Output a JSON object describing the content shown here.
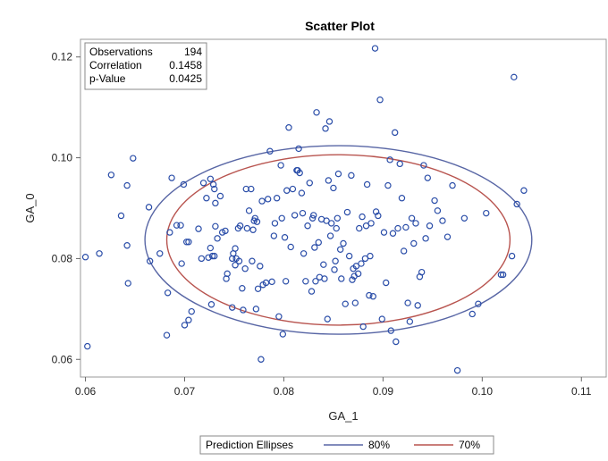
{
  "chart_data": {
    "type": "scatter",
    "title": "Scatter Plot",
    "xlabel": "GA_1",
    "ylabel": "GA_0",
    "xlim": [
      0.0595,
      0.1125
    ],
    "ylim": [
      0.0565,
      0.1235
    ],
    "xticks": [
      "0.06",
      "0.07",
      "0.08",
      "0.09",
      "0.10",
      "0.11"
    ],
    "xtick_values": [
      0.06,
      0.07,
      0.08,
      0.09,
      0.1,
      0.11
    ],
    "yticks": [
      "0.06",
      "0.08",
      "0.10",
      "0.12"
    ],
    "ytick_values": [
      0.06,
      0.08,
      0.1,
      0.12
    ],
    "grid": false,
    "stats": [
      {
        "label": "Observations",
        "value": "194"
      },
      {
        "label": "Correlation",
        "value": "0.1458"
      },
      {
        "label": "p-Value",
        "value": "0.0425"
      }
    ],
    "legend": {
      "position": "bottom",
      "title": "Prediction Ellipses",
      "entries": [
        {
          "label": "80%",
          "color": "#5866a5"
        },
        {
          "label": "70%",
          "color": "#b8544f"
        }
      ]
    },
    "ellipses": [
      {
        "label": "80%",
        "center": [
          0.0855,
          0.0837
        ],
        "rx": 0.0195,
        "ry": 0.0187,
        "color": "#5866a5"
      },
      {
        "label": "70%",
        "center": [
          0.0855,
          0.0837
        ],
        "rx": 0.0173,
        "ry": 0.0169,
        "color": "#b8544f"
      }
    ],
    "marker_color": "#2a4da8",
    "points": [
      [
        0.06,
        0.0803
      ],
      [
        0.0602,
        0.0626
      ],
      [
        0.0614,
        0.081
      ],
      [
        0.0626,
        0.0966
      ],
      [
        0.0636,
        0.0885
      ],
      [
        0.0642,
        0.0945
      ],
      [
        0.0643,
        0.0751
      ],
      [
        0.0642,
        0.0826
      ],
      [
        0.0648,
        0.0999
      ],
      [
        0.0664,
        0.0902
      ],
      [
        0.0665,
        0.0795
      ],
      [
        0.0675,
        0.081
      ],
      [
        0.0682,
        0.0648
      ],
      [
        0.0683,
        0.0732
      ],
      [
        0.0685,
        0.0852
      ],
      [
        0.0687,
        0.096
      ],
      [
        0.0692,
        0.0866
      ],
      [
        0.0696,
        0.0866
      ],
      [
        0.0697,
        0.079
      ],
      [
        0.0699,
        0.0947
      ],
      [
        0.07,
        0.0668
      ],
      [
        0.0702,
        0.0833
      ],
      [
        0.0704,
        0.0833
      ],
      [
        0.0704,
        0.0678
      ],
      [
        0.0707,
        0.0695
      ],
      [
        0.0714,
        0.0859
      ],
      [
        0.0717,
        0.08
      ],
      [
        0.0719,
        0.095
      ],
      [
        0.0722,
        0.092
      ],
      [
        0.0724,
        0.0802
      ],
      [
        0.0726,
        0.0958
      ],
      [
        0.0726,
        0.0821
      ],
      [
        0.0727,
        0.0709
      ],
      [
        0.0728,
        0.0805
      ],
      [
        0.0729,
        0.0947
      ],
      [
        0.073,
        0.0938
      ],
      [
        0.073,
        0.0805
      ],
      [
        0.0731,
        0.091
      ],
      [
        0.0731,
        0.0864
      ],
      [
        0.0733,
        0.084
      ],
      [
        0.0736,
        0.0924
      ],
      [
        0.0738,
        0.0852
      ],
      [
        0.0741,
        0.0855
      ],
      [
        0.0742,
        0.076
      ],
      [
        0.0743,
        0.077
      ],
      [
        0.0748,
        0.08
      ],
      [
        0.0748,
        0.0703
      ],
      [
        0.0749,
        0.081
      ],
      [
        0.0751,
        0.0787
      ],
      [
        0.0751,
        0.082
      ],
      [
        0.0752,
        0.08
      ],
      [
        0.0754,
        0.086
      ],
      [
        0.0755,
        0.0795
      ],
      [
        0.0756,
        0.0865
      ],
      [
        0.0758,
        0.0741
      ],
      [
        0.0759,
        0.0698
      ],
      [
        0.0761,
        0.078
      ],
      [
        0.0762,
        0.0938
      ],
      [
        0.0763,
        0.086
      ],
      [
        0.0765,
        0.0895
      ],
      [
        0.0767,
        0.0938
      ],
      [
        0.0768,
        0.0795
      ],
      [
        0.0769,
        0.0857
      ],
      [
        0.077,
        0.0875
      ],
      [
        0.0771,
        0.088
      ],
      [
        0.0772,
        0.07
      ],
      [
        0.0773,
        0.0873
      ],
      [
        0.0774,
        0.074
      ],
      [
        0.0776,
        0.0785
      ],
      [
        0.0777,
        0.06
      ],
      [
        0.0778,
        0.0914
      ],
      [
        0.0779,
        0.0748
      ],
      [
        0.0782,
        0.0752
      ],
      [
        0.0784,
        0.0918
      ],
      [
        0.0786,
        0.1013
      ],
      [
        0.0788,
        0.0754
      ],
      [
        0.079,
        0.0845
      ],
      [
        0.0791,
        0.087
      ],
      [
        0.0793,
        0.092
      ],
      [
        0.0795,
        0.0685
      ],
      [
        0.0797,
        0.0985
      ],
      [
        0.0798,
        0.088
      ],
      [
        0.0799,
        0.065
      ],
      [
        0.0801,
        0.0842
      ],
      [
        0.0802,
        0.0755
      ],
      [
        0.0803,
        0.0935
      ],
      [
        0.0805,
        0.106
      ],
      [
        0.0807,
        0.0823
      ],
      [
        0.0809,
        0.0938
      ],
      [
        0.0811,
        0.0886
      ],
      [
        0.0813,
        0.0975
      ],
      [
        0.0814,
        0.0975
      ],
      [
        0.0815,
        0.1018
      ],
      [
        0.0816,
        0.097
      ],
      [
        0.0818,
        0.093
      ],
      [
        0.0819,
        0.089
      ],
      [
        0.082,
        0.081
      ],
      [
        0.0822,
        0.0755
      ],
      [
        0.0824,
        0.0865
      ],
      [
        0.0826,
        0.095
      ],
      [
        0.0828,
        0.0735
      ],
      [
        0.0829,
        0.088
      ],
      [
        0.083,
        0.0886
      ],
      [
        0.0831,
        0.0822
      ],
      [
        0.0832,
        0.0755
      ],
      [
        0.0833,
        0.109
      ],
      [
        0.0835,
        0.0832
      ],
      [
        0.0836,
        0.0763
      ],
      [
        0.0838,
        0.0878
      ],
      [
        0.084,
        0.0788
      ],
      [
        0.0841,
        0.076
      ],
      [
        0.0842,
        0.1058
      ],
      [
        0.0843,
        0.0875
      ],
      [
        0.0844,
        0.068
      ],
      [
        0.0845,
        0.0955
      ],
      [
        0.0846,
        0.1072
      ],
      [
        0.0847,
        0.0845
      ],
      [
        0.0848,
        0.087
      ],
      [
        0.085,
        0.094
      ],
      [
        0.0851,
        0.0778
      ],
      [
        0.0852,
        0.0795
      ],
      [
        0.0853,
        0.086
      ],
      [
        0.0854,
        0.088
      ],
      [
        0.0855,
        0.0968
      ],
      [
        0.0857,
        0.0818
      ],
      [
        0.0858,
        0.076
      ],
      [
        0.086,
        0.083
      ],
      [
        0.0862,
        0.071
      ],
      [
        0.0864,
        0.0892
      ],
      [
        0.0866,
        0.0805
      ],
      [
        0.0868,
        0.0965
      ],
      [
        0.0869,
        0.0758
      ],
      [
        0.087,
        0.078
      ],
      [
        0.0871,
        0.0765
      ],
      [
        0.0872,
        0.0712
      ],
      [
        0.0873,
        0.0785
      ],
      [
        0.0875,
        0.077
      ],
      [
        0.0876,
        0.086
      ],
      [
        0.0878,
        0.079
      ],
      [
        0.0879,
        0.0883
      ],
      [
        0.088,
        0.0665
      ],
      [
        0.0882,
        0.08
      ],
      [
        0.0883,
        0.0865
      ],
      [
        0.0884,
        0.0947
      ],
      [
        0.0886,
        0.0727
      ],
      [
        0.0887,
        0.0805
      ],
      [
        0.0888,
        0.087
      ],
      [
        0.089,
        0.0725
      ],
      [
        0.0892,
        0.1217
      ],
      [
        0.0893,
        0.0893
      ],
      [
        0.0895,
        0.0885
      ],
      [
        0.0897,
        0.1115
      ],
      [
        0.0899,
        0.068
      ],
      [
        0.0901,
        0.0852
      ],
      [
        0.0903,
        0.0752
      ],
      [
        0.0905,
        0.0945
      ],
      [
        0.0907,
        0.0996
      ],
      [
        0.0908,
        0.0657
      ],
      [
        0.091,
        0.085
      ],
      [
        0.0912,
        0.105
      ],
      [
        0.0913,
        0.0635
      ],
      [
        0.0915,
        0.086
      ],
      [
        0.0917,
        0.0988
      ],
      [
        0.0919,
        0.092
      ],
      [
        0.0921,
        0.0815
      ],
      [
        0.0923,
        0.0862
      ],
      [
        0.0925,
        0.0712
      ],
      [
        0.0927,
        0.0675
      ],
      [
        0.0929,
        0.088
      ],
      [
        0.0931,
        0.083
      ],
      [
        0.0933,
        0.087
      ],
      [
        0.0935,
        0.0707
      ],
      [
        0.0937,
        0.0764
      ],
      [
        0.0939,
        0.0773
      ],
      [
        0.0941,
        0.0985
      ],
      [
        0.0943,
        0.084
      ],
      [
        0.0945,
        0.096
      ],
      [
        0.0947,
        0.0865
      ],
      [
        0.0952,
        0.0915
      ],
      [
        0.0955,
        0.0895
      ],
      [
        0.096,
        0.0875
      ],
      [
        0.0965,
        0.0843
      ],
      [
        0.097,
        0.0945
      ],
      [
        0.0975,
        0.0578
      ],
      [
        0.0982,
        0.088
      ],
      [
        0.099,
        0.069
      ],
      [
        0.0996,
        0.071
      ],
      [
        0.1004,
        0.089
      ],
      [
        0.1019,
        0.0768
      ],
      [
        0.1021,
        0.0768
      ],
      [
        0.103,
        0.0805
      ],
      [
        0.1032,
        0.116
      ],
      [
        0.1035,
        0.0908
      ],
      [
        0.1042,
        0.0935
      ]
    ]
  }
}
